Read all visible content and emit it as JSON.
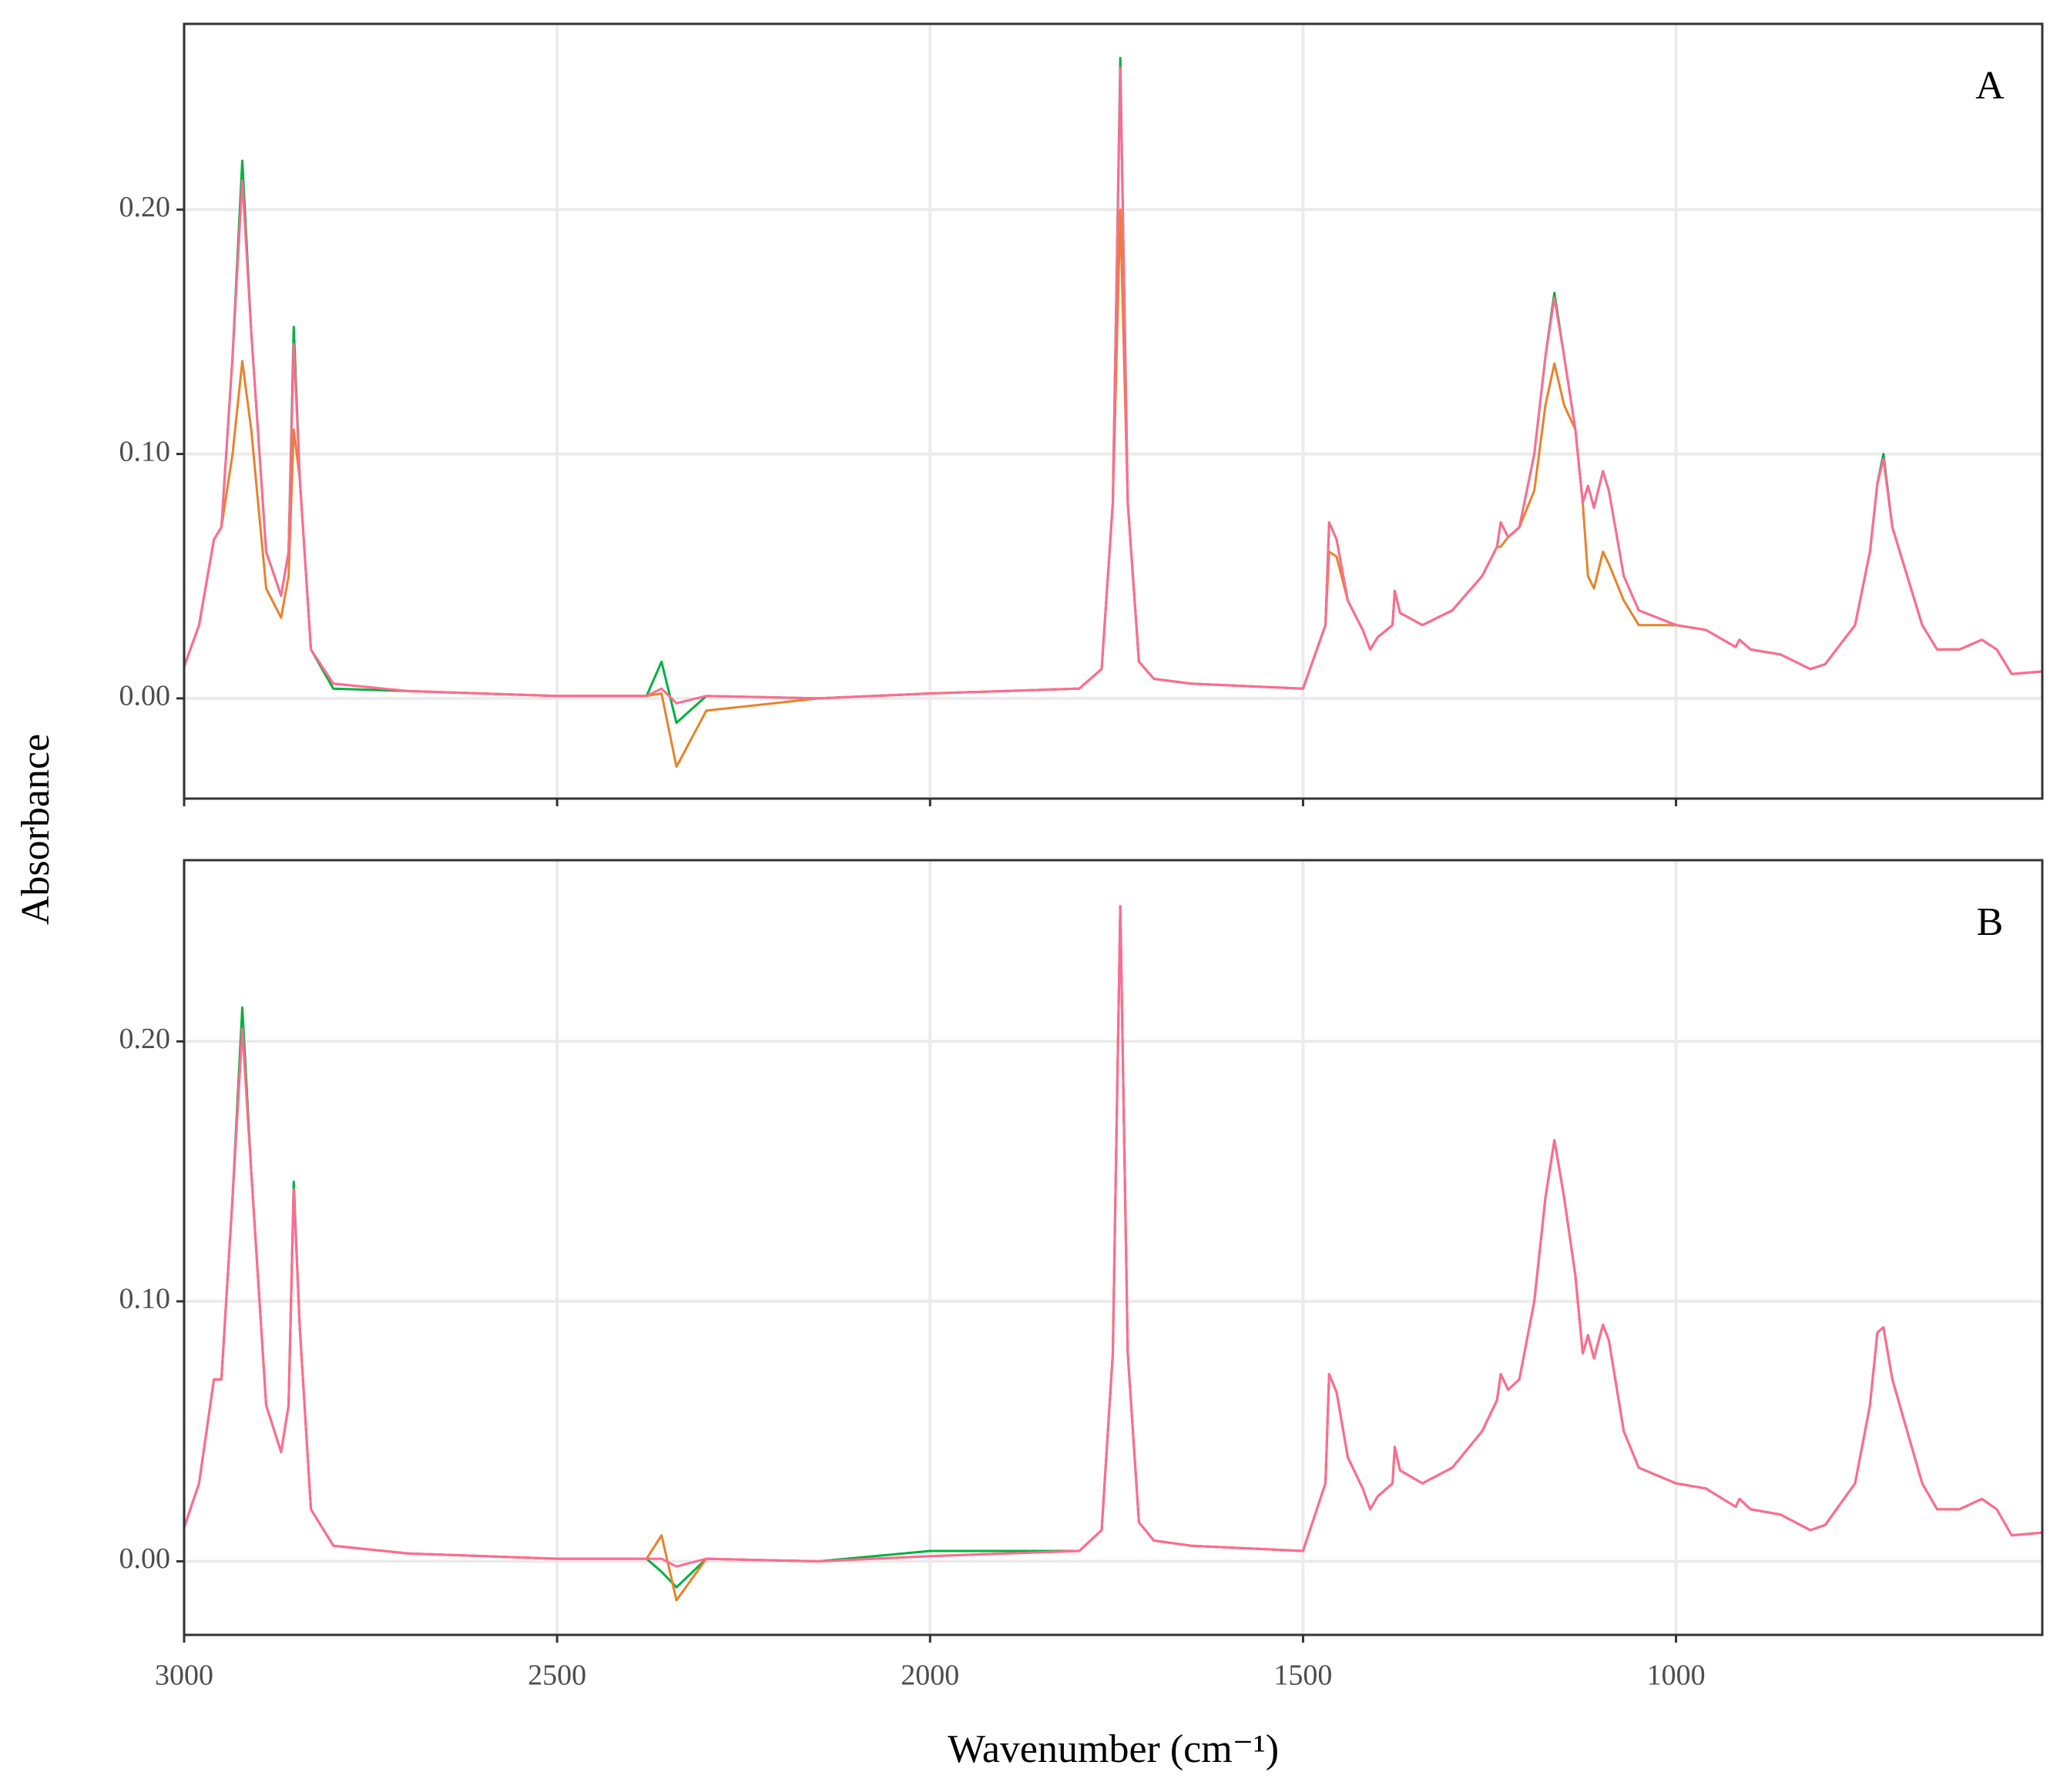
{
  "chart_data": [
    {
      "type": "line",
      "panel_label": "A",
      "ylabel": "Absorbance",
      "show_xtick_labels": false,
      "grid": true,
      "x": [
        3000,
        2980,
        2960,
        2950,
        2935,
        2922,
        2910,
        2890,
        2870,
        2860,
        2853,
        2845,
        2830,
        2800,
        2700,
        2500,
        2380,
        2360,
        2340,
        2300,
        2150,
        2000,
        1800,
        1770,
        1755,
        1745,
        1735,
        1720,
        1700,
        1650,
        1500,
        1470,
        1465,
        1455,
        1440,
        1420,
        1410,
        1400,
        1380,
        1377,
        1370,
        1340,
        1300,
        1260,
        1240,
        1235,
        1225,
        1210,
        1190,
        1175,
        1163,
        1150,
        1135,
        1125,
        1118,
        1110,
        1098,
        1090,
        1070,
        1050,
        1000,
        960,
        920,
        915,
        900,
        860,
        820,
        800,
        760,
        740,
        730,
        722,
        710,
        690,
        670,
        650,
        620,
        590,
        570,
        550,
        510
      ],
      "xlim": [
        3000,
        509
      ],
      "xticks": [
        3000,
        2500,
        2000,
        1500,
        1000
      ],
      "ylim": [
        -0.041,
        0.276
      ],
      "yticks": [
        {
          "value": 0,
          "label": "0.00"
        },
        {
          "value": 0.1,
          "label": "0.10"
        },
        {
          "value": 0.2,
          "label": "0.20"
        }
      ],
      "series": [
        {
          "color": "#00b140",
          "values": [
            0.013,
            0.03,
            0.065,
            0.07,
            0.14,
            0.22,
            0.15,
            0.06,
            0.042,
            0.06,
            0.152,
            0.09,
            0.02,
            0.004,
            0.003,
            0.001,
            0.001,
            0.015,
            -0.01,
            0.001,
            0,
            0.002,
            0.004,
            0.012,
            0.08,
            0.262,
            0.08,
            0.015,
            0.008,
            0.006,
            0.004,
            0.03,
            0.072,
            0.065,
            0.04,
            0.028,
            0.02,
            0.025,
            0.03,
            0.044,
            0.035,
            0.03,
            0.036,
            0.05,
            0.062,
            0.072,
            0.066,
            0.07,
            0.1,
            0.14,
            0.166,
            0.14,
            0.11,
            0.08,
            0.087,
            0.078,
            0.093,
            0.085,
            0.05,
            0.036,
            0.03,
            0.028,
            0.021,
            0.024,
            0.02,
            0.018,
            0.012,
            0.014,
            0.03,
            0.06,
            0.088,
            0.1,
            0.07,
            0.05,
            0.03,
            0.02,
            0.02,
            0.024,
            0.02,
            0.01,
            0.011
          ]
        },
        {
          "color": "#e8822a",
          "values": [
            0.013,
            0.03,
            0.065,
            0.07,
            0.1,
            0.138,
            0.11,
            0.045,
            0.033,
            0.05,
            0.11,
            0.09,
            0.02,
            0.006,
            0.003,
            0.001,
            0.001,
            0.002,
            -0.028,
            -0.005,
            0,
            0.002,
            0.004,
            0.012,
            0.08,
            0.2,
            0.08,
            0.015,
            0.008,
            0.006,
            0.004,
            0.03,
            0.06,
            0.058,
            0.04,
            0.028,
            0.02,
            0.025,
            0.03,
            0.044,
            0.035,
            0.03,
            0.036,
            0.05,
            0.062,
            0.062,
            0.066,
            0.07,
            0.085,
            0.12,
            0.137,
            0.12,
            0.11,
            0.08,
            0.05,
            0.045,
            0.06,
            0.055,
            0.04,
            0.03,
            0.03,
            0.028,
            0.021,
            0.024,
            0.02,
            0.018,
            0.012,
            0.014,
            0.03,
            0.06,
            0.088,
            0.098,
            0.07,
            0.05,
            0.03,
            0.02,
            0.02,
            0.024,
            0.02,
            0.01,
            0.011
          ]
        },
        {
          "color": "#ff6b94",
          "values": [
            0.013,
            0.03,
            0.065,
            0.07,
            0.14,
            0.212,
            0.15,
            0.06,
            0.042,
            0.06,
            0.145,
            0.09,
            0.02,
            0.006,
            0.003,
            0.001,
            0.001,
            0.004,
            -0.002,
            0.001,
            0,
            0.002,
            0.004,
            0.012,
            0.08,
            0.258,
            0.08,
            0.015,
            0.008,
            0.006,
            0.004,
            0.03,
            0.072,
            0.065,
            0.04,
            0.028,
            0.02,
            0.025,
            0.03,
            0.044,
            0.035,
            0.03,
            0.036,
            0.05,
            0.062,
            0.072,
            0.066,
            0.07,
            0.1,
            0.14,
            0.164,
            0.14,
            0.11,
            0.08,
            0.087,
            0.078,
            0.093,
            0.085,
            0.05,
            0.036,
            0.03,
            0.028,
            0.021,
            0.024,
            0.02,
            0.018,
            0.012,
            0.014,
            0.03,
            0.06,
            0.088,
            0.098,
            0.07,
            0.05,
            0.03,
            0.02,
            0.02,
            0.024,
            0.02,
            0.01,
            0.011
          ]
        }
      ]
    },
    {
      "type": "line",
      "panel_label": "B",
      "xlabel": "Wavenumber (cm⁻¹)",
      "show_xtick_labels": true,
      "grid": true,
      "x": [
        3000,
        2980,
        2960,
        2950,
        2935,
        2922,
        2910,
        2890,
        2870,
        2860,
        2853,
        2845,
        2830,
        2800,
        2700,
        2500,
        2380,
        2360,
        2340,
        2300,
        2150,
        2000,
        1800,
        1770,
        1755,
        1745,
        1735,
        1720,
        1700,
        1650,
        1500,
        1470,
        1465,
        1455,
        1440,
        1420,
        1410,
        1400,
        1380,
        1377,
        1370,
        1340,
        1300,
        1260,
        1240,
        1235,
        1225,
        1210,
        1190,
        1175,
        1163,
        1150,
        1135,
        1125,
        1118,
        1110,
        1098,
        1090,
        1070,
        1050,
        1000,
        960,
        920,
        915,
        900,
        860,
        820,
        800,
        760,
        740,
        730,
        722,
        710,
        690,
        670,
        650,
        620,
        590,
        570,
        550,
        510
      ],
      "xlim": [
        3000,
        509
      ],
      "xticks": [
        3000,
        2500,
        2000,
        1500,
        1000
      ],
      "ylim": [
        -0.0283,
        0.2697
      ],
      "yticks": [
        {
          "value": 0,
          "label": "0.00"
        },
        {
          "value": 0.1,
          "label": "0.10"
        },
        {
          "value": 0.2,
          "label": "0.20"
        }
      ],
      "series": [
        {
          "color": "#00b140",
          "values": [
            0.013,
            0.03,
            0.07,
            0.07,
            0.14,
            0.213,
            0.15,
            0.06,
            0.042,
            0.06,
            0.146,
            0.09,
            0.02,
            0.006,
            0.003,
            0.001,
            0.001,
            -0.004,
            -0.01,
            0.001,
            0,
            0.004,
            0.004,
            0.012,
            0.08,
            0.252,
            0.08,
            0.015,
            0.008,
            0.006,
            0.004,
            0.03,
            0.072,
            0.065,
            0.04,
            0.028,
            0.02,
            0.025,
            0.03,
            0.044,
            0.035,
            0.03,
            0.036,
            0.05,
            0.062,
            0.072,
            0.066,
            0.07,
            0.1,
            0.14,
            0.162,
            0.14,
            0.11,
            0.08,
            0.087,
            0.078,
            0.091,
            0.085,
            0.05,
            0.036,
            0.03,
            0.028,
            0.021,
            0.024,
            0.02,
            0.018,
            0.012,
            0.014,
            0.03,
            0.06,
            0.088,
            0.09,
            0.07,
            0.05,
            0.03,
            0.02,
            0.02,
            0.024,
            0.02,
            0.01,
            0.011
          ]
        },
        {
          "color": "#e8822a",
          "values": [
            0.013,
            0.03,
            0.07,
            0.07,
            0.14,
            0.205,
            0.15,
            0.06,
            0.042,
            0.06,
            0.143,
            0.09,
            0.02,
            0.006,
            0.003,
            0.001,
            0.001,
            0.01,
            -0.015,
            0.001,
            0,
            0.002,
            0.004,
            0.012,
            0.08,
            0.252,
            0.08,
            0.015,
            0.008,
            0.006,
            0.004,
            0.03,
            0.072,
            0.065,
            0.04,
            0.028,
            0.02,
            0.025,
            0.03,
            0.044,
            0.035,
            0.03,
            0.036,
            0.05,
            0.062,
            0.072,
            0.066,
            0.07,
            0.1,
            0.14,
            0.162,
            0.14,
            0.11,
            0.08,
            0.087,
            0.078,
            0.091,
            0.085,
            0.05,
            0.036,
            0.03,
            0.028,
            0.021,
            0.024,
            0.02,
            0.018,
            0.012,
            0.014,
            0.03,
            0.06,
            0.088,
            0.09,
            0.07,
            0.05,
            0.03,
            0.02,
            0.02,
            0.024,
            0.02,
            0.01,
            0.011
          ]
        },
        {
          "color": "#ff6b94",
          "values": [
            0.013,
            0.03,
            0.07,
            0.07,
            0.14,
            0.205,
            0.15,
            0.06,
            0.042,
            0.06,
            0.143,
            0.09,
            0.02,
            0.006,
            0.003,
            0.001,
            0.001,
            0.001,
            -0.002,
            0.001,
            0,
            0.002,
            0.004,
            0.012,
            0.08,
            0.252,
            0.08,
            0.015,
            0.008,
            0.006,
            0.004,
            0.03,
            0.072,
            0.065,
            0.04,
            0.028,
            0.02,
            0.025,
            0.03,
            0.044,
            0.035,
            0.03,
            0.036,
            0.05,
            0.062,
            0.072,
            0.066,
            0.07,
            0.1,
            0.14,
            0.162,
            0.14,
            0.11,
            0.08,
            0.087,
            0.078,
            0.091,
            0.085,
            0.05,
            0.036,
            0.03,
            0.028,
            0.021,
            0.024,
            0.02,
            0.018,
            0.012,
            0.014,
            0.03,
            0.06,
            0.088,
            0.09,
            0.07,
            0.05,
            0.03,
            0.02,
            0.02,
            0.024,
            0.02,
            0.01,
            0.011
          ]
        }
      ]
    }
  ]
}
